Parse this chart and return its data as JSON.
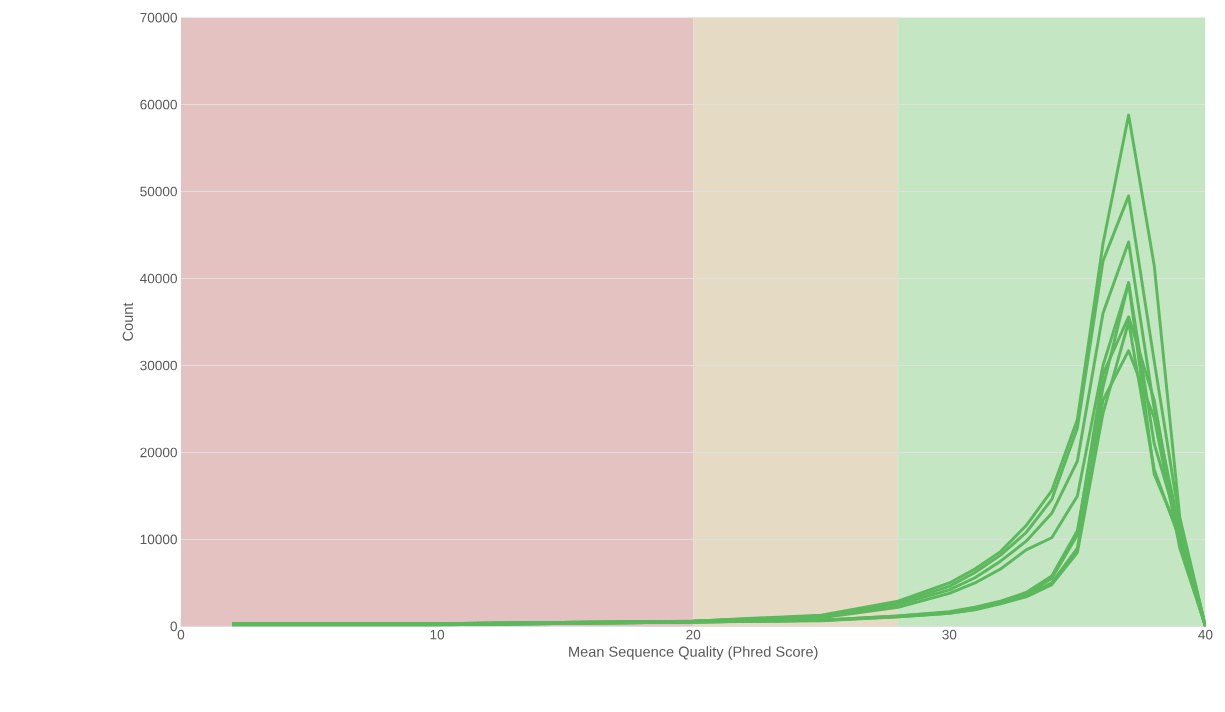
{
  "chart_data": {
    "type": "line",
    "xlabel": "Mean Sequence Quality (Phred Score)",
    "ylabel": "Count",
    "xlim": [
      0,
      40
    ],
    "ylim": [
      0,
      70000
    ],
    "xticks": [
      0,
      10,
      20,
      30,
      40
    ],
    "yticks": [
      0,
      10000,
      20000,
      30000,
      40000,
      50000,
      60000,
      70000
    ],
    "grid": "y",
    "marker": "none",
    "line_style": "solid",
    "x": [
      2,
      10,
      20,
      25,
      28,
      30,
      31,
      32,
      33,
      34,
      35,
      36,
      37,
      38,
      39,
      40
    ],
    "bands": [
      {
        "axis": "x",
        "from": 0,
        "to": 20,
        "color": "#e4c2c2"
      },
      {
        "axis": "x",
        "from": 20,
        "to": 28,
        "color": "#e5dac3"
      },
      {
        "axis": "x",
        "from": 28,
        "to": 40,
        "color": "#c4e6c3"
      }
    ],
    "series": [
      {
        "color": "#5cb85c",
        "values": [
          300,
          300,
          600,
          1300,
          2900,
          5000,
          6600,
          8600,
          11600,
          15600,
          23800,
          44000,
          58800,
          41500,
          12500,
          0
        ]
      },
      {
        "color": "#5cb85c",
        "values": [
          300,
          300,
          600,
          1200,
          2700,
          4600,
          6200,
          8200,
          10800,
          14600,
          22800,
          42000,
          49500,
          30500,
          12000,
          0
        ]
      },
      {
        "color": "#5cb85c",
        "values": [
          300,
          300,
          600,
          1100,
          2500,
          4200,
          5600,
          7500,
          9800,
          13000,
          19000,
          36000,
          44200,
          25000,
          11000,
          0
        ]
      },
      {
        "color": "#5cb85c",
        "values": [
          300,
          300,
          600,
          1000,
          2200,
          3800,
          5000,
          6600,
          8800,
          10200,
          15000,
          30000,
          39500,
          17500,
          10500,
          0
        ]
      },
      {
        "color": "#5cb85c",
        "values": [
          200,
          200,
          500,
          700,
          1200,
          1600,
          2100,
          2800,
          3700,
          5500,
          10500,
          29000,
          35600,
          26000,
          9500,
          0
        ]
      },
      {
        "color": "#5cb85c",
        "values": [
          200,
          200,
          500,
          700,
          1100,
          1500,
          2000,
          2700,
          3600,
          5000,
          9000,
          26000,
          31700,
          24000,
          9000,
          0
        ]
      },
      {
        "color": "#5cb85c",
        "values": [
          200,
          200,
          500,
          700,
          1200,
          1700,
          2200,
          2900,
          3900,
          5800,
          11000,
          27500,
          39500,
          21000,
          11000,
          0
        ]
      },
      {
        "color": "#5cb85c",
        "values": [
          200,
          200,
          500,
          650,
          1100,
          1500,
          1900,
          2600,
          3400,
          4800,
          8500,
          24500,
          35000,
          18000,
          10000,
          0
        ]
      }
    ]
  }
}
